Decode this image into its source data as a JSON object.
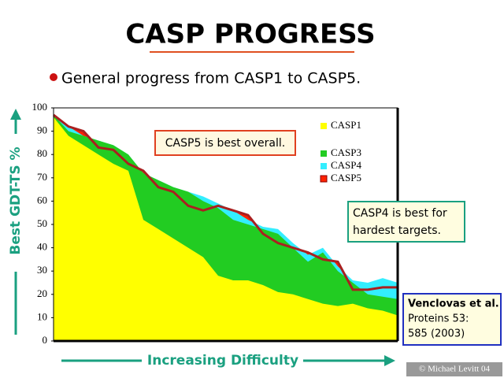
{
  "chart_data": {
    "type": "area",
    "title": "CASP PROGRESS",
    "subtitle": "General progress from CASP1 to CASP5.",
    "y_label": "Best GDT-TS %",
    "x_label": "Increasing Difficulty",
    "annotations": [
      "CASP5 is best overall.",
      "CASP4 is best for",
      "hardest targets."
    ],
    "citation": [
      "Venclovas et al.",
      "Proteins 53:",
      "585 (2003)"
    ],
    "credit": "© Michael Levitt 04",
    "categories": [
      null,
      null,
      null,
      null,
      null,
      null,
      null,
      null,
      null,
      null,
      null,
      null,
      null,
      null,
      null,
      null,
      null,
      null,
      null,
      null,
      null,
      null,
      null,
      null
    ],
    "ylim": [
      0,
      100
    ],
    "yticks": [
      0,
      10,
      20,
      30,
      40,
      50,
      60,
      70,
      80,
      90,
      100
    ],
    "series": [
      {
        "name": "CASP1",
        "color": "#ffff00",
        "values": [
          96,
          88,
          84,
          80,
          76,
          73,
          52,
          48,
          44,
          40,
          36,
          28,
          26,
          26,
          24,
          21,
          20,
          18,
          16,
          15,
          16,
          14,
          13,
          11
        ]
      },
      {
        "name": "CASP3",
        "color": "#22cc22",
        "values": [
          97,
          90,
          88,
          86,
          84,
          80,
          72,
          69,
          66,
          64,
          60,
          57,
          52,
          50,
          48,
          46,
          40,
          34,
          38,
          30,
          25,
          20,
          19,
          18
        ]
      },
      {
        "name": "CASP4",
        "color": "#33eeff",
        "values": [
          97,
          92,
          88,
          86,
          84,
          80,
          72,
          69,
          66,
          64,
          62,
          59,
          56,
          52,
          49,
          48,
          42,
          37,
          40,
          32,
          26,
          25,
          27,
          25
        ]
      },
      {
        "name": "CASP5",
        "color": "#ff2200",
        "values": [
          97,
          92,
          90,
          83,
          82,
          76,
          73,
          66,
          64,
          58,
          56,
          58,
          56,
          54,
          46,
          42,
          40,
          38,
          35,
          34,
          22,
          22,
          23,
          23
        ]
      }
    ]
  }
}
